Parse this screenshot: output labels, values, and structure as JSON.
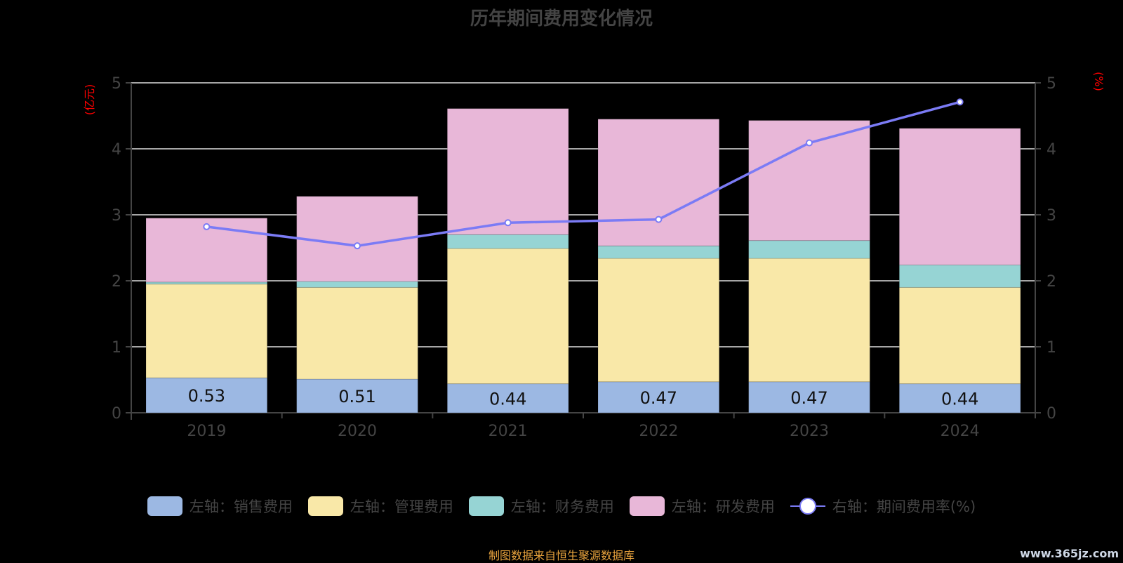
{
  "chart_data": {
    "type": "bar",
    "title": "历年期间费用变化情况",
    "categories": [
      "2019",
      "2020",
      "2021",
      "2022",
      "2023",
      "2024"
    ],
    "ylabel": "(亿元)",
    "y2label": "(%)",
    "ylim": [
      0,
      5
    ],
    "y2lim": [
      0,
      5
    ],
    "yticks": [
      "0",
      "1",
      "2",
      "3",
      "4",
      "5"
    ],
    "stacked": true,
    "series": [
      {
        "name": "左轴：销售费用",
        "axis": "left",
        "color": "#9cb8e3",
        "values": [
          0.53,
          0.51,
          0.44,
          0.47,
          0.47,
          0.44
        ],
        "labels": [
          "0.53",
          "0.51",
          "0.44",
          "0.47",
          "0.47",
          "0.44"
        ]
      },
      {
        "name": "左轴：管理费用",
        "axis": "left",
        "color": "#f9e8a8",
        "values": [
          1.42,
          1.39,
          2.05,
          1.87,
          1.87,
          1.46
        ]
      },
      {
        "name": "左轴：财务费用",
        "axis": "left",
        "color": "#96d4d4",
        "values": [
          0.03,
          0.09,
          0.21,
          0.19,
          0.27,
          0.34
        ]
      },
      {
        "name": "左轴：研发费用",
        "axis": "left",
        "color": "#e8b7d8",
        "values": [
          0.97,
          1.29,
          1.91,
          1.92,
          1.82,
          2.07
        ]
      },
      {
        "name": "右轴：期间费用率(%)",
        "axis": "right",
        "type": "line",
        "color": "#7b7bf5",
        "values": [
          2.82,
          2.53,
          2.88,
          2.93,
          4.09,
          4.71
        ]
      }
    ],
    "grid": true,
    "legend_position": "bottom"
  },
  "footer": "制图数据来自恒生聚源数据库",
  "watermark": "www.365jz.com"
}
